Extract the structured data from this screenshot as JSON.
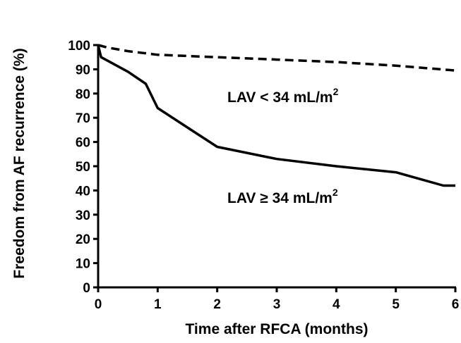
{
  "chart_data": {
    "type": "line",
    "title": "",
    "xlabel": "Time after RFCA (months)",
    "ylabel": "Freedom from AF recurrence (%)",
    "xlim": [
      0,
      6
    ],
    "ylim": [
      0,
      100
    ],
    "xticks": [
      "0",
      "1",
      "2",
      "3",
      "4",
      "5",
      "6"
    ],
    "yticks": [
      "0",
      "10",
      "20",
      "30",
      "40",
      "50",
      "60",
      "70",
      "80",
      "90",
      "100"
    ],
    "grid": false,
    "series": [
      {
        "name": "LAV < 34 mL/m2",
        "label_main": "LAV < 34 mL/m",
        "label_sup": "2",
        "style": "dashed",
        "color": "#000000",
        "x": [
          0,
          0.15,
          0.5,
          1,
          2,
          3,
          4,
          5,
          6
        ],
        "y": [
          100,
          99,
          97.5,
          96,
          95,
          94,
          93,
          91.5,
          89.5
        ]
      },
      {
        "name": "LAV ≥ 34 mL/m2",
        "label_main": "LAV ≥ 34 mL/m",
        "label_sup": "2",
        "style": "solid",
        "color": "#000000",
        "x": [
          0,
          0.05,
          0.5,
          0.8,
          1,
          1.5,
          2,
          3,
          4,
          5,
          5.8,
          6
        ],
        "y": [
          100,
          95,
          89,
          84,
          74,
          66,
          58,
          53,
          50,
          47.5,
          42,
          42
        ]
      }
    ]
  }
}
